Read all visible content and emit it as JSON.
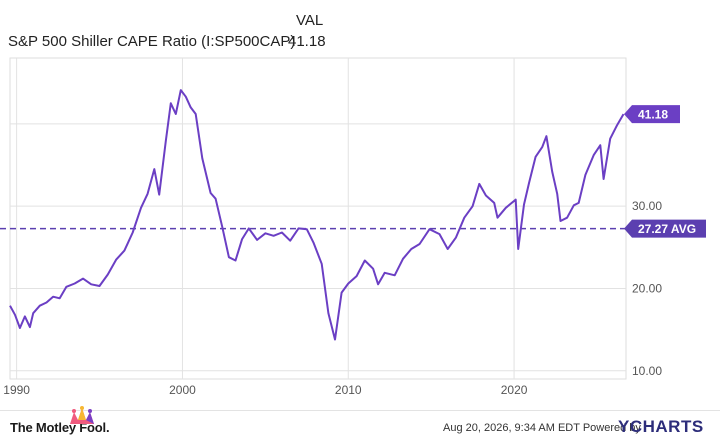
{
  "header": {
    "column_label": "VAL",
    "series_name": "S&P 500 Shiller CAPE Ratio (I:SP500CAP)",
    "series_value": "41.18"
  },
  "chart_data": {
    "type": "line",
    "title": "",
    "xlabel": "",
    "ylabel": "",
    "x_ticks": [
      "1990",
      "2000",
      "2010",
      "2020"
    ],
    "y_ticks": [
      "10.00",
      "20.00",
      "30.00"
    ],
    "xlim": [
      1989.6,
      2026.75
    ],
    "ylim": [
      9,
      48
    ],
    "grid": true,
    "y_axis_side": "right",
    "series": [
      {
        "name": "S&P 500 Shiller CAPE Ratio",
        "color": "#6b3fc4",
        "points": [
          [
            1989.6,
            17.9
          ],
          [
            1989.9,
            16.8
          ],
          [
            1990.2,
            15.2
          ],
          [
            1990.5,
            16.6
          ],
          [
            1990.8,
            15.3
          ],
          [
            1991.0,
            17.0
          ],
          [
            1991.4,
            17.9
          ],
          [
            1991.8,
            18.3
          ],
          [
            1992.2,
            19.0
          ],
          [
            1992.6,
            18.8
          ],
          [
            1993.0,
            20.2
          ],
          [
            1993.5,
            20.6
          ],
          [
            1994.0,
            21.2
          ],
          [
            1994.5,
            20.5
          ],
          [
            1995.0,
            20.3
          ],
          [
            1995.5,
            21.7
          ],
          [
            1996.0,
            23.5
          ],
          [
            1996.5,
            24.6
          ],
          [
            1997.0,
            26.8
          ],
          [
            1997.5,
            29.8
          ],
          [
            1997.9,
            31.5
          ],
          [
            1998.3,
            34.5
          ],
          [
            1998.6,
            31.4
          ],
          [
            1999.0,
            38.0
          ],
          [
            1999.3,
            42.5
          ],
          [
            1999.6,
            41.2
          ],
          [
            1999.9,
            44.1
          ],
          [
            2000.2,
            43.3
          ],
          [
            2000.5,
            42.0
          ],
          [
            2000.8,
            41.2
          ],
          [
            2001.2,
            35.8
          ],
          [
            2001.7,
            31.6
          ],
          [
            2002.0,
            30.9
          ],
          [
            2002.4,
            27.5
          ],
          [
            2002.8,
            23.8
          ],
          [
            2003.2,
            23.4
          ],
          [
            2003.6,
            26.0
          ],
          [
            2004.0,
            27.3
          ],
          [
            2004.5,
            25.9
          ],
          [
            2005.0,
            26.7
          ],
          [
            2005.5,
            26.4
          ],
          [
            2006.0,
            26.8
          ],
          [
            2006.5,
            25.8
          ],
          [
            2007.0,
            27.3
          ],
          [
            2007.5,
            27.2
          ],
          [
            2007.9,
            25.6
          ],
          [
            2008.4,
            23.0
          ],
          [
            2008.8,
            17.0
          ],
          [
            2009.2,
            13.8
          ],
          [
            2009.6,
            19.5
          ],
          [
            2010.0,
            20.6
          ],
          [
            2010.5,
            21.5
          ],
          [
            2011.0,
            23.4
          ],
          [
            2011.5,
            22.4
          ],
          [
            2011.8,
            20.5
          ],
          [
            2012.2,
            21.9
          ],
          [
            2012.8,
            21.6
          ],
          [
            2013.3,
            23.6
          ],
          [
            2013.8,
            24.8
          ],
          [
            2014.3,
            25.4
          ],
          [
            2014.9,
            27.2
          ],
          [
            2015.5,
            26.6
          ],
          [
            2016.0,
            24.8
          ],
          [
            2016.5,
            26.2
          ],
          [
            2017.0,
            28.6
          ],
          [
            2017.5,
            30.0
          ],
          [
            2017.9,
            32.7
          ],
          [
            2018.3,
            31.3
          ],
          [
            2018.8,
            30.4
          ],
          [
            2019.0,
            28.6
          ],
          [
            2019.5,
            29.8
          ],
          [
            2020.1,
            30.8
          ],
          [
            2020.25,
            24.8
          ],
          [
            2020.6,
            30.2
          ],
          [
            2020.9,
            32.8
          ],
          [
            2021.3,
            36.0
          ],
          [
            2021.7,
            37.2
          ],
          [
            2021.95,
            38.5
          ],
          [
            2022.3,
            34.2
          ],
          [
            2022.6,
            31.5
          ],
          [
            2022.8,
            28.2
          ],
          [
            2023.2,
            28.6
          ],
          [
            2023.6,
            30.1
          ],
          [
            2023.9,
            30.4
          ],
          [
            2024.3,
            33.8
          ],
          [
            2024.8,
            36.2
          ],
          [
            2025.2,
            37.4
          ],
          [
            2025.4,
            33.3
          ],
          [
            2025.8,
            38.2
          ],
          [
            2026.2,
            39.8
          ],
          [
            2026.6,
            41.18
          ]
        ]
      }
    ],
    "average": {
      "label": "27.27 AVG",
      "value": 27.27,
      "color": "#5b3fb0"
    },
    "last_value_label": "41.18"
  },
  "footer": {
    "brand": "The Motley Fool.",
    "timestamp": "Aug 20, 2026, 9:34 AM EDT Powered by",
    "ycharts_y": "Y",
    "ycharts_rest": "CHARTS"
  }
}
